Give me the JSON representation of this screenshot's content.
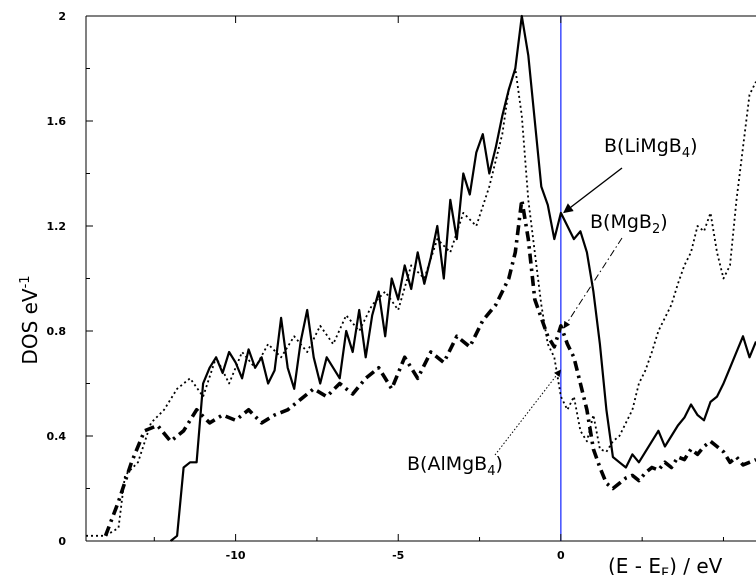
{
  "chart_data": {
    "type": "line",
    "title": "",
    "xlabel": "(E - E",
    "xlabel_sub": "F",
    "xlabel_tail": ") / eV",
    "ylabel": "DOS eV",
    "ylabel_sup": "-1",
    "xlim": [
      -14.6,
      6.0
    ],
    "ylim": [
      0,
      2
    ],
    "xticks": [
      -10,
      -5,
      0
    ],
    "xtick_labels": [
      "-10",
      "-5",
      "0"
    ],
    "yticks": [
      0,
      0.4,
      0.8,
      1.2,
      1.6,
      2
    ],
    "ytick_labels": [
      "0",
      "0.4",
      "0.8",
      "1.2",
      "1.6",
      "2"
    ],
    "fermi_level": 0,
    "grid": false,
    "series": [
      {
        "style": "solid",
        "x": [
          -12.0,
          -11.8,
          -11.6,
          -11.4,
          -11.2,
          -11.0,
          -10.8,
          -10.6,
          -10.4,
          -10.2,
          -10.0,
          -9.8,
          -9.6,
          -9.4,
          -9.2,
          -9.0,
          -8.8,
          -8.6,
          -8.4,
          -8.2,
          -8.0,
          -7.8,
          -7.6,
          -7.4,
          -7.2,
          -7.0,
          -6.8,
          -6.6,
          -6.4,
          -6.2,
          -6.0,
          -5.8,
          -5.6,
          -5.4,
          -5.2,
          -5.0,
          -4.8,
          -4.6,
          -4.4,
          -4.2,
          -4.0,
          -3.8,
          -3.6,
          -3.4,
          -3.2,
          -3.0,
          -2.8,
          -2.6,
          -2.4,
          -2.2,
          -2.0,
          -1.8,
          -1.6,
          -1.4,
          -1.2,
          -1.0,
          -0.8,
          -0.6,
          -0.4,
          -0.2,
          0.0,
          0.2,
          0.4,
          0.6,
          0.8,
          1.0,
          1.2,
          1.4,
          1.6,
          1.8,
          2.0,
          2.2,
          2.4,
          2.6,
          2.8,
          3.0,
          3.2,
          3.4,
          3.6,
          3.8,
          4.0,
          4.2,
          4.4,
          4.6,
          4.8,
          5.0,
          5.2,
          5.4,
          5.6,
          5.8,
          6.0
        ],
        "y": [
          0.0,
          0.02,
          0.28,
          0.3,
          0.3,
          0.6,
          0.66,
          0.7,
          0.64,
          0.72,
          0.68,
          0.62,
          0.73,
          0.66,
          0.7,
          0.6,
          0.65,
          0.85,
          0.66,
          0.58,
          0.76,
          0.88,
          0.7,
          0.6,
          0.7,
          0.66,
          0.62,
          0.8,
          0.72,
          0.88,
          0.7,
          0.86,
          0.95,
          0.78,
          1.0,
          0.92,
          1.05,
          0.96,
          1.1,
          0.98,
          1.08,
          1.2,
          1.0,
          1.3,
          1.15,
          1.4,
          1.32,
          1.48,
          1.55,
          1.4,
          1.5,
          1.62,
          1.72,
          1.8,
          2.0,
          1.85,
          1.6,
          1.35,
          1.28,
          1.15,
          1.25,
          1.2,
          1.15,
          1.18,
          1.1,
          0.95,
          0.75,
          0.5,
          0.32,
          0.3,
          0.28,
          0.33,
          0.3,
          0.34,
          0.38,
          0.42,
          0.36,
          0.4,
          0.44,
          0.47,
          0.52,
          0.48,
          0.46,
          0.53,
          0.55,
          0.6,
          0.66,
          0.72,
          0.78,
          0.7,
          0.76
        ]
      },
      {
        "style": "dotted",
        "x": [
          -14.6,
          -14.0,
          -13.6,
          -13.4,
          -13.0,
          -12.6,
          -12.2,
          -11.8,
          -11.4,
          -11.0,
          -10.6,
          -10.2,
          -9.8,
          -9.4,
          -9.0,
          -8.6,
          -8.2,
          -7.8,
          -7.4,
          -7.0,
          -6.6,
          -6.2,
          -5.8,
          -5.4,
          -5.0,
          -4.6,
          -4.2,
          -3.8,
          -3.4,
          -3.0,
          -2.6,
          -2.2,
          -1.8,
          -1.6,
          -1.4,
          -1.2,
          -1.0,
          -0.8,
          -0.6,
          -0.4,
          -0.2,
          0.0,
          0.2,
          0.4,
          0.6,
          0.8,
          1.0,
          1.2,
          1.4,
          1.6,
          1.8,
          2.0,
          2.2,
          2.4,
          2.6,
          2.8,
          3.0,
          3.2,
          3.4,
          3.6,
          3.8,
          4.0,
          4.2,
          4.4,
          4.6,
          4.8,
          5.0,
          5.2,
          5.4,
          5.6,
          5.8,
          6.0
        ],
        "y": [
          0.02,
          0.02,
          0.05,
          0.25,
          0.3,
          0.45,
          0.5,
          0.58,
          0.62,
          0.55,
          0.7,
          0.6,
          0.72,
          0.66,
          0.75,
          0.7,
          0.78,
          0.72,
          0.82,
          0.75,
          0.86,
          0.8,
          0.9,
          0.95,
          0.88,
          1.05,
          1.0,
          1.15,
          1.1,
          1.25,
          1.2,
          1.35,
          1.55,
          1.72,
          1.8,
          1.62,
          1.3,
          1.1,
          0.9,
          0.75,
          0.7,
          0.55,
          0.5,
          0.55,
          0.42,
          0.38,
          0.48,
          0.35,
          0.34,
          0.38,
          0.4,
          0.45,
          0.5,
          0.6,
          0.65,
          0.72,
          0.8,
          0.85,
          0.9,
          0.98,
          1.05,
          1.1,
          1.2,
          1.18,
          1.25,
          1.1,
          1.0,
          1.05,
          1.3,
          1.5,
          1.7,
          1.75
        ]
      },
      {
        "style": "dashdot",
        "x": [
          -14.0,
          -13.6,
          -13.2,
          -12.8,
          -12.4,
          -12.0,
          -11.6,
          -11.2,
          -10.8,
          -10.4,
          -10.0,
          -9.6,
          -9.2,
          -8.8,
          -8.4,
          -8.0,
          -7.6,
          -7.2,
          -6.8,
          -6.4,
          -6.0,
          -5.6,
          -5.2,
          -4.8,
          -4.4,
          -4.0,
          -3.6,
          -3.2,
          -2.8,
          -2.4,
          -2.0,
          -1.6,
          -1.4,
          -1.2,
          -1.0,
          -0.8,
          -0.6,
          -0.4,
          -0.2,
          0.0,
          0.2,
          0.4,
          0.6,
          0.8,
          1.0,
          1.2,
          1.4,
          1.6,
          1.8,
          2.0,
          2.2,
          2.4,
          2.6,
          2.8,
          3.0,
          3.2,
          3.4,
          3.6,
          3.8,
          4.0,
          4.2,
          4.4,
          4.6,
          4.8,
          5.0,
          5.2,
          5.4,
          5.6,
          5.8,
          6.0
        ],
        "y": [
          0.02,
          0.15,
          0.3,
          0.42,
          0.44,
          0.38,
          0.42,
          0.5,
          0.45,
          0.48,
          0.46,
          0.5,
          0.45,
          0.48,
          0.5,
          0.54,
          0.58,
          0.55,
          0.6,
          0.56,
          0.62,
          0.66,
          0.58,
          0.7,
          0.62,
          0.72,
          0.68,
          0.78,
          0.74,
          0.84,
          0.9,
          1.0,
          1.1,
          1.3,
          1.15,
          0.92,
          0.85,
          0.78,
          0.74,
          0.82,
          0.75,
          0.7,
          0.6,
          0.5,
          0.35,
          0.28,
          0.22,
          0.2,
          0.22,
          0.24,
          0.25,
          0.23,
          0.26,
          0.28,
          0.27,
          0.3,
          0.28,
          0.32,
          0.31,
          0.35,
          0.33,
          0.36,
          0.38,
          0.36,
          0.34,
          0.3,
          0.32,
          0.29,
          0.3,
          0.31
        ]
      }
    ],
    "annotations": [
      {
        "text": "B(LiMgB",
        "sub": "4",
        "tail": ")",
        "target": [
          0.0,
          1.24
        ]
      },
      {
        "text": "B(MgB",
        "sub": "2",
        "tail": ")",
        "target": [
          0.0,
          0.8
        ]
      },
      {
        "text": "B(AlMgB",
        "sub": "4",
        "tail": ")",
        "target": [
          -0.1,
          0.64
        ]
      }
    ],
    "colors": {
      "series": "#000000",
      "fermi_line": "#2233ff",
      "axes": "#000000"
    }
  }
}
